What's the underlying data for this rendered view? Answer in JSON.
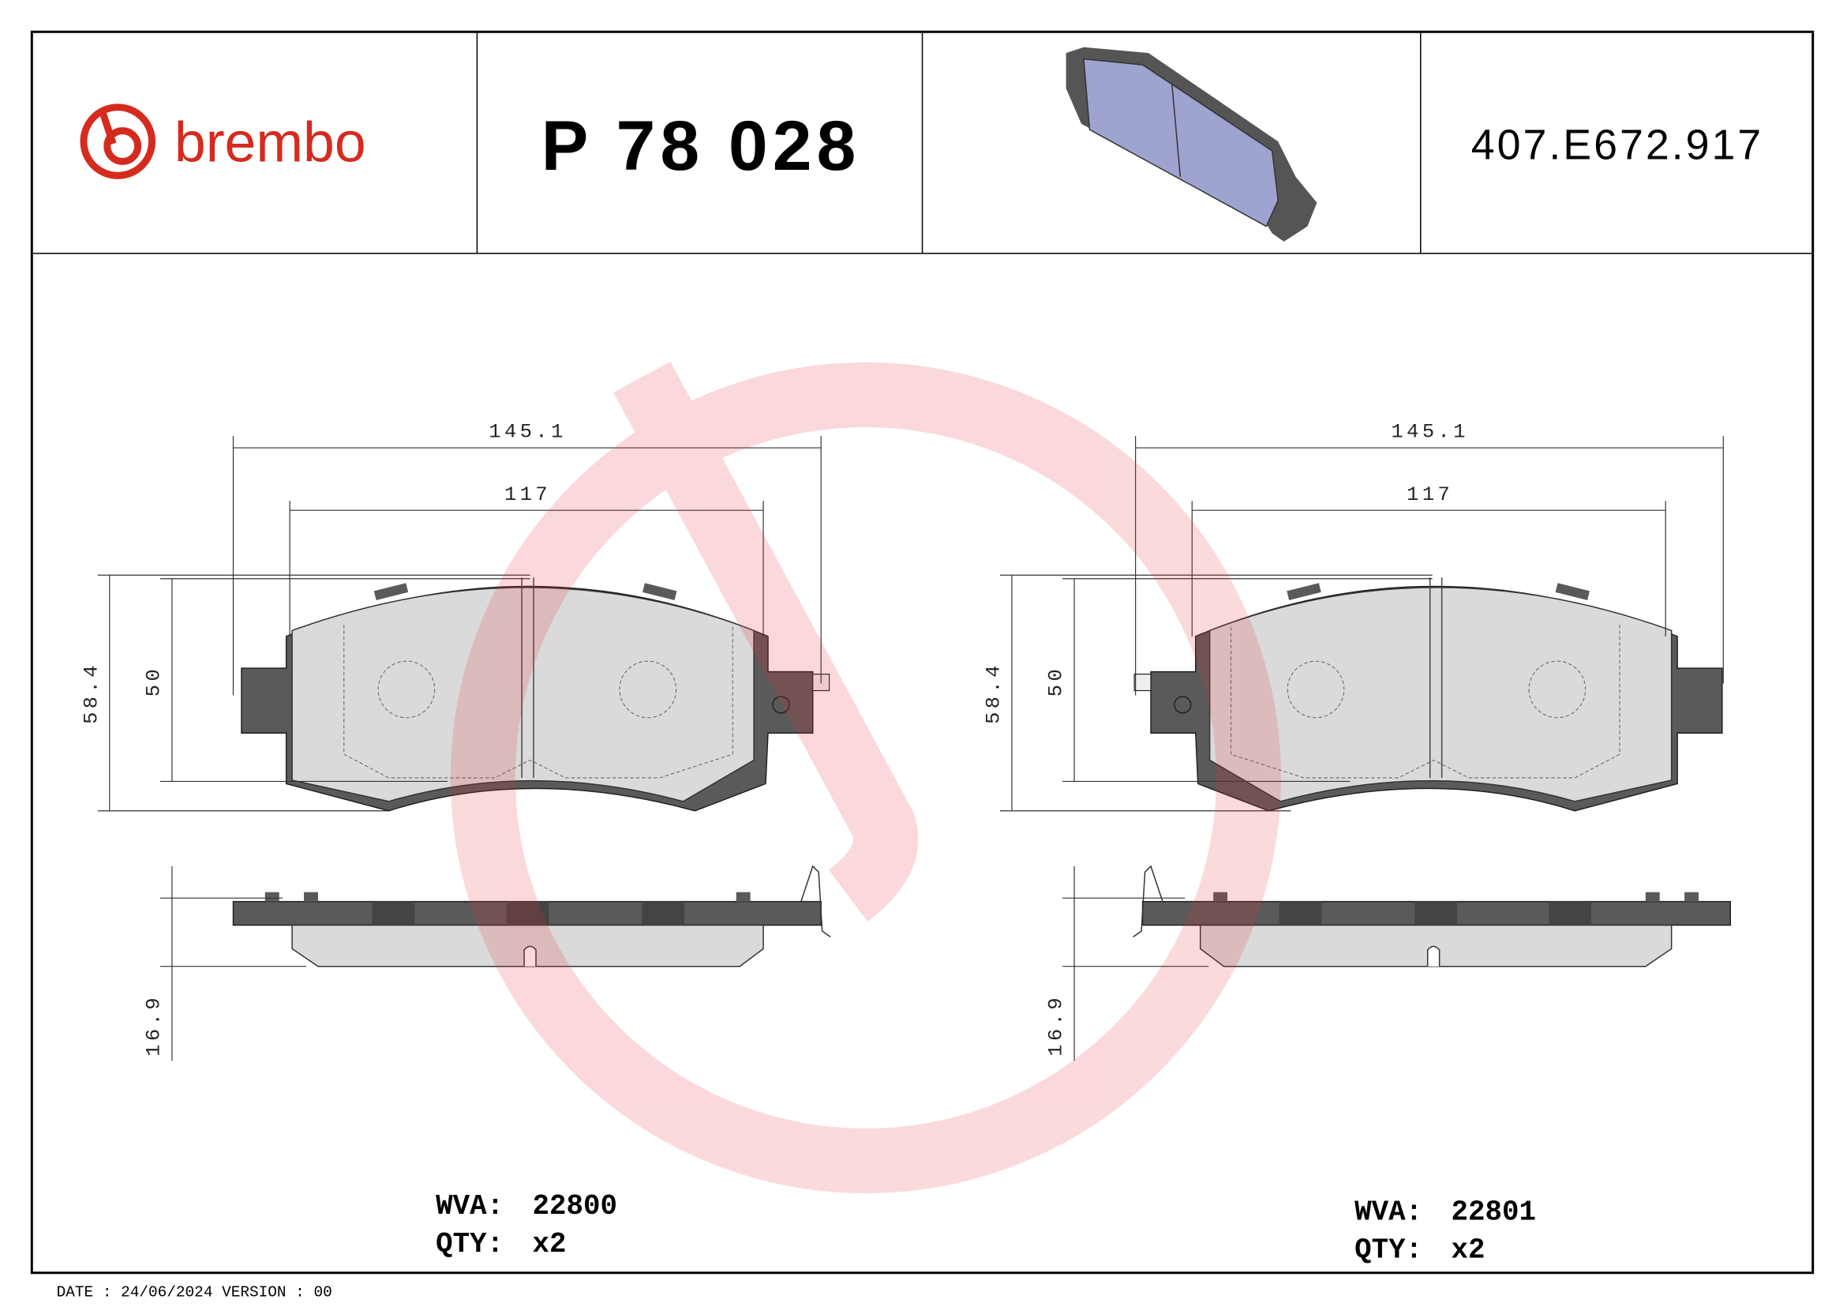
{
  "header": {
    "logo": "brembo",
    "part_number": "P 78 028",
    "code": "407.E672.917"
  },
  "drawings": [
    {
      "width": "145.1",
      "inner_width": "117",
      "height": "58.4",
      "inner_height": "50",
      "thickness": "16.9",
      "wva_label": "WVA:",
      "wva": "22800",
      "qty_label": "QTY:",
      "qty": "x2"
    },
    {
      "width": "145.1",
      "inner_width": "117",
      "height": "58.4",
      "inner_height": "50",
      "thickness": "16.9",
      "wva_label": "WVA:",
      "wva": "22801",
      "qty_label": "QTY:",
      "qty": "x2"
    }
  ],
  "footer": "DATE : 24/06/2024 VERSION : 00"
}
